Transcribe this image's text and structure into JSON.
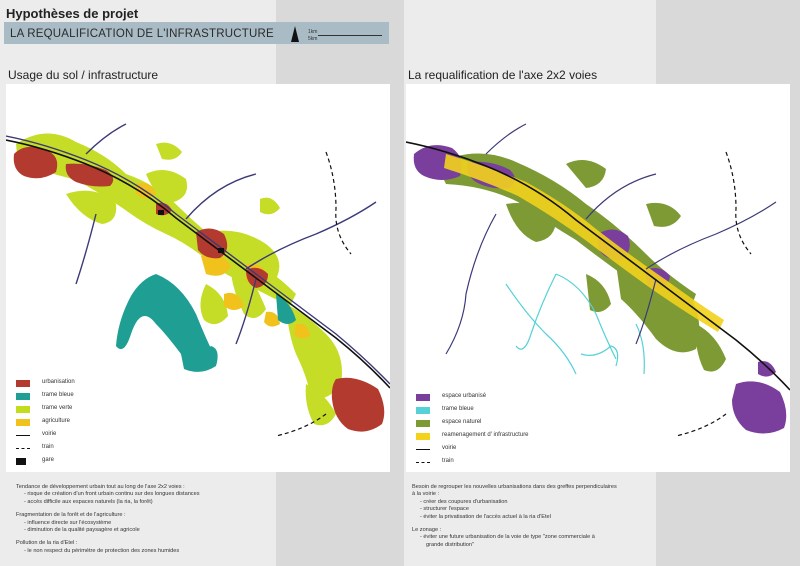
{
  "header": {
    "title": "Hypothèses de projet",
    "banner": "LA REQUALIFICATION DE L'INFRASTRUCTURE",
    "scale": [
      "1km",
      "5km"
    ]
  },
  "left": {
    "title": "Usage du sol / infrastructure",
    "legend": [
      {
        "label": "urbanisation",
        "kind": "fill",
        "color": "#b23a2e"
      },
      {
        "label": "trame bleue",
        "kind": "fill",
        "color": "#1f9e93"
      },
      {
        "label": "trame verte",
        "kind": "fill",
        "color": "#c3dc1c"
      },
      {
        "label": "agriculture",
        "kind": "fill",
        "color": "#f2c21c"
      },
      {
        "label": "voirie",
        "kind": "line"
      },
      {
        "label": "train",
        "kind": "dash"
      },
      {
        "label": "gare",
        "kind": "block"
      }
    ],
    "notes": [
      {
        "text": "Tendance de développement urbain tout au long de l'axe 2x2 voies :",
        "indent": false
      },
      {
        "text": "- risque de création d'un front urbain continu sur des longues distances",
        "indent": true
      },
      {
        "text": "- accès difficile aux espaces naturels (la ria, la forêt)",
        "indent": true
      },
      {
        "text": "",
        "indent": false
      },
      {
        "text": "Fragmentation de la forêt et de l'agriculture :",
        "indent": false
      },
      {
        "text": "- influence directe sur l'écosystème",
        "indent": true
      },
      {
        "text": "- diminution de la qualité paysagère et agricole",
        "indent": true
      },
      {
        "text": "",
        "indent": false
      },
      {
        "text": "Pollution de la ria d'Etel :",
        "indent": false
      },
      {
        "text": "- le non respect du périmètre de protection des zones humides",
        "indent": true
      }
    ]
  },
  "right": {
    "title": "La requalification de l'axe 2x2 voies",
    "legend": [
      {
        "label": "espace urbanisé",
        "kind": "fill",
        "color": "#7a3e9d"
      },
      {
        "label": "trame bleue",
        "kind": "fill",
        "color": "#56d1d6"
      },
      {
        "label": "espace naturel",
        "kind": "fill",
        "color": "#7d9a35"
      },
      {
        "label": "reamenagement d' infrastructure",
        "kind": "fill",
        "color": "#f2d21c"
      },
      {
        "label": "voirie",
        "kind": "line"
      },
      {
        "label": "train",
        "kind": "dash"
      }
    ],
    "notes": [
      {
        "text": "Besoin de regrouper les nouvelles urbanisations dans des greffes perpendiculaires",
        "indent": false
      },
      {
        "text": "à la voirie :",
        "indent": false
      },
      {
        "text": "- créer des coupures d'urbanisation",
        "indent": true
      },
      {
        "text": "- structurer l'espace",
        "indent": true
      },
      {
        "text": "- éviter la privatisation de l'accès actuel à la ria d'Etel",
        "indent": true
      },
      {
        "text": "",
        "indent": false
      },
      {
        "text": "Le zonage :",
        "indent": false
      },
      {
        "text": "- éviter une future urbanisation de la voie de type \"zone commerciale à",
        "indent": true
      },
      {
        "text": "grande distribution\"",
        "indent": true
      }
    ]
  }
}
